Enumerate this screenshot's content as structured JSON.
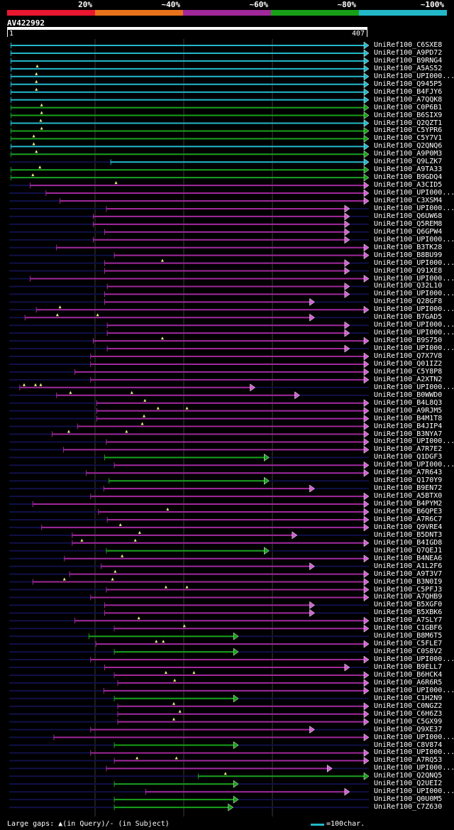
{
  "legend": {
    "labels": [
      "20%",
      "~40%",
      "~60%",
      "~80%",
      "~100%"
    ],
    "colors": [
      "#e8172f",
      "#e8731a",
      "#a0289a",
      "#18a018",
      "#22b8c8"
    ]
  },
  "query": {
    "id": "AV422992",
    "start": "1",
    "end": "407",
    "length": 407
  },
  "colors": {
    "cyan": "#22b8c8",
    "green": "#18a018",
    "magenta": "#a0289a",
    "lightmagenta": "#d060d0",
    "navy": "#101048",
    "grid": "#3a3a3a",
    "triangle": "#f0f080"
  },
  "footer": {
    "gaps_text": "Large gaps: ▲(in Query)/- (in Subject)",
    "scale_text": "=100char."
  },
  "hits": [
    {
      "name": "UniRef100_C6SXE8",
      "c": "cyan",
      "s": 3,
      "e": 407,
      "a": 1,
      "gq": []
    },
    {
      "name": "UniRef100_A9PD72",
      "c": "cyan",
      "s": 3,
      "e": 407,
      "a": 1,
      "gq": []
    },
    {
      "name": "UniRef100_B9RNG4",
      "c": "cyan",
      "s": 3,
      "e": 407,
      "a": 1,
      "gq": []
    },
    {
      "name": "UniRef100_A5AS52",
      "c": "cyan",
      "s": 3,
      "e": 407,
      "a": 1,
      "gq": [
        33
      ]
    },
    {
      "name": "UniRef100_UPI000...",
      "c": "cyan",
      "s": 3,
      "e": 407,
      "a": 1,
      "gq": [
        32
      ]
    },
    {
      "name": "UniRef100_Q945P5",
      "c": "cyan",
      "s": 3,
      "e": 407,
      "a": 1,
      "gq": [
        32
      ]
    },
    {
      "name": "UniRef100_B4FJY6",
      "c": "cyan",
      "s": 3,
      "e": 407,
      "a": 1,
      "gq": [
        32
      ]
    },
    {
      "name": "UniRef100_A7QQK8",
      "c": "cyan",
      "s": 3,
      "e": 407,
      "a": 1,
      "gq": []
    },
    {
      "name": "UniRef100_C0P6B1",
      "c": "green",
      "s": 3,
      "e": 407,
      "a": 1,
      "gq": [
        38
      ]
    },
    {
      "name": "UniRef100_B6SIX9",
      "c": "green",
      "s": 3,
      "e": 407,
      "a": 1,
      "gq": [
        38
      ]
    },
    {
      "name": "UniRef100_Q2QZT1",
      "c": "cyan",
      "s": 3,
      "e": 407,
      "a": 1,
      "gq": [
        37
      ]
    },
    {
      "name": "UniRef100_C5YPR6",
      "c": "green",
      "s": 3,
      "e": 407,
      "a": 1,
      "gq": [
        38
      ]
    },
    {
      "name": "UniRef100_C5Y7V1",
      "c": "green",
      "s": 3,
      "e": 407,
      "a": 1,
      "gq": [
        29
      ]
    },
    {
      "name": "UniRef100_Q2QNQ6",
      "c": "cyan",
      "s": 3,
      "e": 407,
      "a": 1,
      "gq": [
        29
      ]
    },
    {
      "name": "UniRef100_A9P0M3",
      "c": "green",
      "s": 3,
      "e": 407,
      "a": 1,
      "gq": [
        32
      ]
    },
    {
      "name": "UniRef100_Q9LZK7",
      "c": "cyan",
      "s": 117,
      "e": 407,
      "a": 1,
      "gq": []
    },
    {
      "name": "UniRef100_A9TA33",
      "c": "green",
      "s": 3,
      "e": 407,
      "a": 1,
      "gq": [
        36
      ]
    },
    {
      "name": "UniRef100_B9GDQ4",
      "c": "green",
      "s": 3,
      "e": 407,
      "a": 1,
      "gq": [
        28
      ]
    },
    {
      "name": "UniRef100_A3CID5",
      "c": "magenta",
      "s": 25,
      "e": 407,
      "a": 1,
      "gq": [
        123
      ]
    },
    {
      "name": "UniRef100_UPI000...",
      "c": "magenta",
      "s": 43,
      "e": 407,
      "a": 1,
      "gq": []
    },
    {
      "name": "UniRef100_C3XSM4",
      "c": "magenta",
      "s": 59,
      "e": 407,
      "a": 1,
      "gq": []
    },
    {
      "name": "UniRef100_UPI000...",
      "c": "magenta",
      "s": 112,
      "e": 385,
      "a": 1,
      "gq": []
    },
    {
      "name": "UniRef100_Q6UW68",
      "c": "magenta",
      "s": 97,
      "e": 385,
      "a": 1,
      "gq": []
    },
    {
      "name": "UniRef100_Q5REM8",
      "c": "magenta",
      "s": 97,
      "e": 385,
      "a": 1,
      "gq": []
    },
    {
      "name": "UniRef100_Q6GPW4",
      "c": "magenta",
      "s": 110,
      "e": 385,
      "a": 1,
      "gq": []
    },
    {
      "name": "UniRef100_UPI000...",
      "c": "magenta",
      "s": 97,
      "e": 385,
      "a": 1,
      "gq": []
    },
    {
      "name": "UniRef100_B3TK28",
      "c": "magenta",
      "s": 55,
      "e": 407,
      "a": 1,
      "gq": []
    },
    {
      "name": "UniRef100_B8BU99",
      "c": "magenta",
      "s": 121,
      "e": 407,
      "a": 1,
      "gq": []
    },
    {
      "name": "UniRef100_UPI000...",
      "c": "magenta",
      "s": 110,
      "e": 385,
      "a": 1,
      "gq": [
        176
      ]
    },
    {
      "name": "UniRef100_Q91XE8",
      "c": "magenta",
      "s": 110,
      "e": 385,
      "a": 1,
      "gq": []
    },
    {
      "name": "UniRef100_UPI000...",
      "c": "magenta",
      "s": 25,
      "e": 407,
      "a": 1,
      "gq": []
    },
    {
      "name": "UniRef100_Q32L10",
      "c": "magenta",
      "s": 113,
      "e": 385,
      "a": 1,
      "gq": []
    },
    {
      "name": "UniRef100_UPI000...",
      "c": "magenta",
      "s": 110,
      "e": 385,
      "a": 1,
      "gq": []
    },
    {
      "name": "UniRef100_Q28GF8",
      "c": "magenta",
      "s": 110,
      "e": 345,
      "a": 1,
      "gq": []
    },
    {
      "name": "UniRef100_UPI000...",
      "c": "magenta",
      "s": 32,
      "e": 407,
      "a": 1,
      "gq": [
        59
      ]
    },
    {
      "name": "UniRef100_B7GAD5",
      "c": "magenta",
      "s": 19,
      "e": 345,
      "a": 1,
      "gq": [
        56,
        102
      ]
    },
    {
      "name": "UniRef100_UPI000...",
      "c": "magenta",
      "s": 113,
      "e": 385,
      "a": 1,
      "gq": []
    },
    {
      "name": "UniRef100_UPI000...",
      "c": "magenta",
      "s": 113,
      "e": 385,
      "a": 1,
      "gq": []
    },
    {
      "name": "UniRef100_B9S750",
      "c": "magenta",
      "s": 97,
      "e": 407,
      "a": 1,
      "gq": [
        176
      ]
    },
    {
      "name": "UniRef100_UPI000...",
      "c": "magenta",
      "s": 113,
      "e": 385,
      "a": 1,
      "gq": []
    },
    {
      "name": "UniRef100_Q7X7V8",
      "c": "magenta",
      "s": 94,
      "e": 407,
      "a": 1,
      "gq": []
    },
    {
      "name": "UniRef100_Q01IZ2",
      "c": "magenta",
      "s": 94,
      "e": 407,
      "a": 1,
      "gq": []
    },
    {
      "name": "UniRef100_C5Y8P8",
      "c": "magenta",
      "s": 76,
      "e": 407,
      "a": 1,
      "gq": []
    },
    {
      "name": "UniRef100_A2XTN2",
      "c": "magenta",
      "s": 94,
      "e": 407,
      "a": 1,
      "gq": []
    },
    {
      "name": "UniRef100_UPI000...",
      "c": "magenta",
      "s": 13,
      "e": 277,
      "a": 1,
      "gq": [
        18,
        31,
        37
      ]
    },
    {
      "name": "UniRef100_B0WWD0",
      "c": "magenta",
      "s": 55,
      "e": 328,
      "a": 1,
      "gq": [
        71,
        141
      ]
    },
    {
      "name": "UniRef100_B4L8Q3",
      "c": "magenta",
      "s": 101,
      "e": 407,
      "a": 1,
      "gq": [
        156
      ]
    },
    {
      "name": "UniRef100_A9RJM5",
      "c": "magenta",
      "s": 101,
      "e": 407,
      "a": 1,
      "gq": [
        171,
        204
      ]
    },
    {
      "name": "UniRef100_B4M1T8",
      "c": "magenta",
      "s": 101,
      "e": 407,
      "a": 1,
      "gq": [
        155
      ]
    },
    {
      "name": "UniRef100_B4JIP4",
      "c": "magenta",
      "s": 79,
      "e": 407,
      "a": 1,
      "gq": [
        153
      ]
    },
    {
      "name": "UniRef100_B3NYA7",
      "c": "magenta",
      "s": 50,
      "e": 407,
      "a": 1,
      "gq": [
        69,
        135
      ]
    },
    {
      "name": "UniRef100_UPI000...",
      "c": "magenta",
      "s": 112,
      "e": 407,
      "a": 1,
      "gq": []
    },
    {
      "name": "UniRef100_A7R7E2",
      "c": "magenta",
      "s": 63,
      "e": 407,
      "a": 1,
      "gq": []
    },
    {
      "name": "UniRef100_Q1DGF3",
      "c": "green",
      "s": 110,
      "e": 293,
      "a": 1,
      "gq": []
    },
    {
      "name": "UniRef100_UPI000...",
      "c": "magenta",
      "s": 121,
      "e": 407,
      "a": 1,
      "gq": []
    },
    {
      "name": "UniRef100_A7R643",
      "c": "magenta",
      "s": 89,
      "e": 407,
      "a": 1,
      "gq": []
    },
    {
      "name": "UniRef100_Q170Y9",
      "c": "green",
      "s": 115,
      "e": 293,
      "a": 1,
      "gq": []
    },
    {
      "name": "UniRef100_B9EN72",
      "c": "magenta",
      "s": 109,
      "e": 345,
      "a": 1,
      "gq": []
    },
    {
      "name": "UniRef100_A5BTX0",
      "c": "magenta",
      "s": 94,
      "e": 407,
      "a": 1,
      "gq": []
    },
    {
      "name": "UniRef100_B4PYM2",
      "c": "magenta",
      "s": 28,
      "e": 407,
      "a": 1,
      "gq": []
    },
    {
      "name": "UniRef100_B6QPE3",
      "c": "magenta",
      "s": 103,
      "e": 407,
      "a": 1,
      "gq": [
        182
      ]
    },
    {
      "name": "UniRef100_A7R6C7",
      "c": "magenta",
      "s": 113,
      "e": 407,
      "a": 1,
      "gq": []
    },
    {
      "name": "UniRef100_Q9VRE4",
      "c": "magenta",
      "s": 38,
      "e": 407,
      "a": 1,
      "gq": [
        128
      ]
    },
    {
      "name": "UniRef100_B5DNT3",
      "c": "magenta",
      "s": 73,
      "e": 325,
      "a": 1,
      "gq": [
        150
      ]
    },
    {
      "name": "UniRef100_B4IGD8",
      "c": "magenta",
      "s": 73,
      "e": 407,
      "a": 1,
      "gq": [
        84,
        145
      ]
    },
    {
      "name": "UniRef100_Q7QEJ1",
      "c": "green",
      "s": 112,
      "e": 293,
      "a": 1,
      "gq": []
    },
    {
      "name": "UniRef100_B4NEA6",
      "c": "magenta",
      "s": 64,
      "e": 407,
      "a": 1,
      "gq": [
        130
      ]
    },
    {
      "name": "UniRef100_A1L2F6",
      "c": "magenta",
      "s": 106,
      "e": 345,
      "a": 1,
      "gq": []
    },
    {
      "name": "UniRef100_A9T3V7",
      "c": "magenta",
      "s": 70,
      "e": 407,
      "a": 1,
      "gq": [
        122
      ]
    },
    {
      "name": "UniRef100_B3N0I9",
      "c": "magenta",
      "s": 28,
      "e": 407,
      "a": 1,
      "gq": [
        64,
        119
      ]
    },
    {
      "name": "UniRef100_C5PFJ3",
      "c": "magenta",
      "s": 112,
      "e": 407,
      "a": 1,
      "gq": [
        180,
        204
      ]
    },
    {
      "name": "UniRef100_A7QHB9",
      "c": "magenta",
      "s": 94,
      "e": 407,
      "a": 1,
      "gq": []
    },
    {
      "name": "UniRef100_B5XGF0",
      "c": "magenta",
      "s": 110,
      "e": 345,
      "a": 1,
      "gq": []
    },
    {
      "name": "UniRef100_B5XBK6",
      "c": "magenta",
      "s": 110,
      "e": 345,
      "a": 1,
      "gq": []
    },
    {
      "name": "UniRef100_A7SLY7",
      "c": "magenta",
      "s": 76,
      "e": 407,
      "a": 1,
      "gq": [
        149
      ]
    },
    {
      "name": "UniRef100_C1GBF6",
      "c": "magenta",
      "s": 121,
      "e": 407,
      "a": 1,
      "gq": [
        201
      ]
    },
    {
      "name": "UniRef100_B8M6T5",
      "c": "green",
      "s": 92,
      "e": 258,
      "a": 1,
      "gq": []
    },
    {
      "name": "UniRef100_C5FLE7",
      "c": "magenta",
      "s": 100,
      "e": 407,
      "a": 1,
      "gq": [
        169,
        177
      ]
    },
    {
      "name": "UniRef100_C0S8V2",
      "c": "green",
      "s": 121,
      "e": 258,
      "a": 1,
      "gq": []
    },
    {
      "name": "UniRef100_UPI000...",
      "c": "magenta",
      "s": 94,
      "e": 407,
      "a": 1,
      "gq": []
    },
    {
      "name": "UniRef100_B9ELL7",
      "c": "magenta",
      "s": 110,
      "e": 385,
      "a": 1,
      "gq": []
    },
    {
      "name": "UniRef100_B6HCK4",
      "c": "magenta",
      "s": 121,
      "e": 407,
      "a": 1,
      "gq": [
        180,
        212
      ]
    },
    {
      "name": "UniRef100_A6R6R5",
      "c": "magenta",
      "s": 125,
      "e": 407,
      "a": 1,
      "gq": [
        190
      ]
    },
    {
      "name": "UniRef100_UPI000...",
      "c": "magenta",
      "s": 109,
      "e": 407,
      "a": 1,
      "gq": []
    },
    {
      "name": "UniRef100_C1H2N9",
      "c": "green",
      "s": 121,
      "e": 258,
      "a": 1,
      "gq": []
    },
    {
      "name": "UniRef100_C0NGZ2",
      "c": "magenta",
      "s": 125,
      "e": 407,
      "a": 1,
      "gq": [
        189
      ]
    },
    {
      "name": "UniRef100_C6H6Z3",
      "c": "magenta",
      "s": 125,
      "e": 407,
      "a": 1,
      "gq": [
        196
      ]
    },
    {
      "name": "UniRef100_C5GX99",
      "c": "magenta",
      "s": 125,
      "e": 407,
      "a": 1,
      "gq": [
        189
      ]
    },
    {
      "name": "UniRef100_Q9XE37",
      "c": "magenta",
      "s": 94,
      "e": 345,
      "a": 1,
      "gq": []
    },
    {
      "name": "UniRef100_UPI000...",
      "c": "magenta",
      "s": 52,
      "e": 407,
      "a": 1,
      "gq": []
    },
    {
      "name": "UniRef100_C8V874",
      "c": "green",
      "s": 121,
      "e": 258,
      "a": 1,
      "gq": []
    },
    {
      "name": "UniRef100_UPI000...",
      "c": "magenta",
      "s": 94,
      "e": 407,
      "a": 1,
      "gq": []
    },
    {
      "name": "UniRef100_A7RQ53",
      "c": "magenta",
      "s": 121,
      "e": 407,
      "a": 1,
      "gq": [
        147,
        192
      ]
    },
    {
      "name": "UniRef100_UPI000...",
      "c": "magenta",
      "s": 112,
      "e": 365,
      "a": 1,
      "gq": []
    },
    {
      "name": "UniRef100_Q2QNQ5",
      "c": "green",
      "s": 217,
      "e": 407,
      "a": 1,
      "gq": [
        248
      ]
    },
    {
      "name": "UniRef100_Q2UEI2",
      "c": "green",
      "s": 121,
      "e": 258,
      "a": 1,
      "gq": []
    },
    {
      "name": "UniRef100_UPI000...",
      "c": "magenta",
      "s": 157,
      "e": 385,
      "a": 1,
      "gq": []
    },
    {
      "name": "UniRef100_Q0U0M5",
      "c": "green",
      "s": 121,
      "e": 258,
      "a": 1,
      "gq": []
    },
    {
      "name": "UniRef100_C7Z630",
      "c": "green",
      "s": 121,
      "e": 252,
      "a": 1,
      "gq": []
    }
  ]
}
